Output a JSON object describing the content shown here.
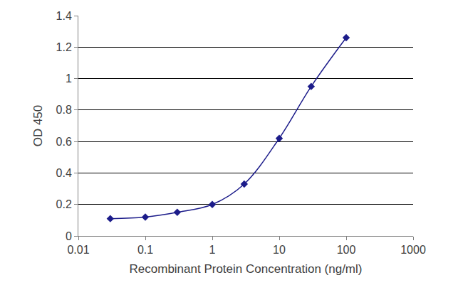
{
  "chart_data": {
    "type": "line",
    "x_label": "Recombinant Protein Concentration (ng/ml)",
    "y_label": "OD 450",
    "x": [
      0.03,
      0.1,
      0.3,
      1,
      3,
      10,
      30,
      100
    ],
    "values": [
      0.11,
      0.12,
      0.15,
      0.2,
      0.33,
      0.62,
      0.95,
      1.26
    ],
    "color": "#1c1c8a",
    "marker": "diamond",
    "line_style": "smooth",
    "log": "x",
    "xlim": [
      0.01,
      1000
    ],
    "xticks": [
      0.01,
      0.1,
      1,
      10,
      100,
      1000
    ],
    "ylim": [
      0,
      1.4
    ],
    "yticks": [
      0,
      0.2,
      0.4,
      0.6,
      0.8,
      1,
      1.2,
      1.4
    ],
    "grid": true
  }
}
